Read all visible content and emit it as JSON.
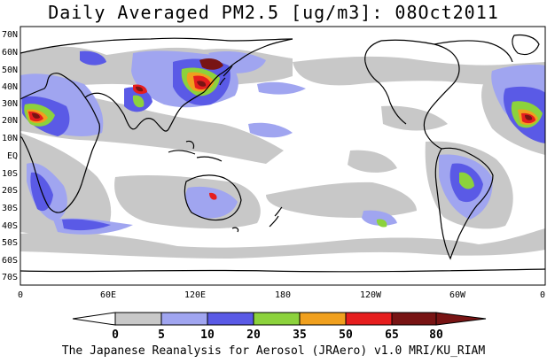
{
  "title": "Daily Averaged PM2.5 [ug/m3]: 08Oct2011",
  "footer": "The Japanese Reanalysis for Aerosol (JRAero) v1.0 MRI/KU_RIAM",
  "lat_labels": [
    "70N",
    "60N",
    "50N",
    "40N",
    "30N",
    "20N",
    "10N",
    "EQ",
    "10S",
    "20S",
    "30S",
    "40S",
    "50S",
    "60S",
    "70S"
  ],
  "lon_labels": [
    "0",
    "60E",
    "120E",
    "180",
    "120W",
    "60W",
    "0"
  ],
  "colorbar": {
    "bounds": [
      "0",
      "5",
      "10",
      "20",
      "35",
      "50",
      "65",
      "80"
    ],
    "colors": [
      "#ffffff",
      "#c8c8c8",
      "#a0a5f0",
      "#5a5ae6",
      "#8cd23c",
      "#f0a01e",
      "#e61e1e",
      "#781414"
    ]
  },
  "map": {
    "ocean_color": "#ffffff",
    "coast_color": "#000000",
    "region": "global, 75S-75N, 0-360E"
  }
}
